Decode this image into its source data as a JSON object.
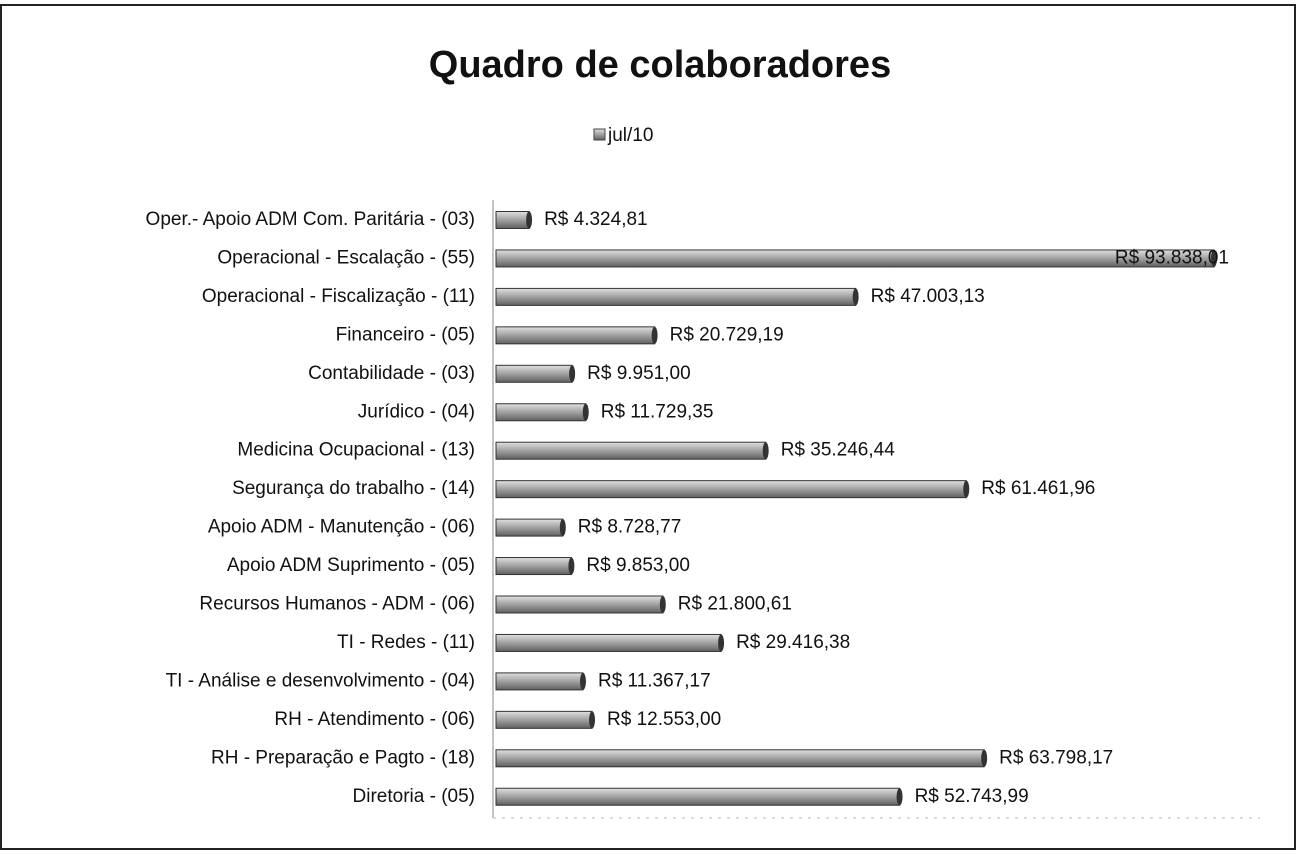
{
  "chart_data": {
    "type": "bar",
    "orientation": "horizontal",
    "title": "Quadro de colaboradores",
    "categories": [
      "Oper.- Apoio ADM Com. Paritária - (03)",
      "Operacional - Escalação - (55)",
      "Operacional - Fiscalização - (11)",
      "Financeiro - (05)",
      "Contabilidade - (03)",
      "Jurídico - (04)",
      "Medicina Ocupacional - (13)",
      "Segurança do trabalho - (14)",
      "Apoio ADM - Manutenção - (06)",
      "Apoio ADM Suprimento - (05)",
      "Recursos Humanos - ADM - (06)",
      "TI - Redes - (11)",
      "TI - Análise e desenvolvimento - (04)",
      "RH - Atendimento - (06)",
      "RH - Preparação e Pagto - (18)",
      "Diretoria -  (05)"
    ],
    "series": [
      {
        "name": "jul/10",
        "color": "#a8a8a8",
        "values": [
          4324.81,
          93838.01,
          47003.13,
          20729.19,
          9951.0,
          11729.35,
          35246.44,
          61461.96,
          8728.77,
          9853.0,
          21800.61,
          29416.38,
          11367.17,
          12553.0,
          63798.17,
          52743.99
        ],
        "value_labels": [
          "R$ 4.324,81",
          "R$ 93.838,01",
          "R$ 47.003,13",
          "R$ 20.729,19",
          "R$ 9.951,00",
          "R$ 11.729,35",
          "R$ 35.246,44",
          "R$ 61.461,96",
          "R$ 8.728,77",
          "R$ 9.853,00",
          "R$ 21.800,61",
          "R$ 29.416,38",
          "R$ 11.367,17",
          "R$ 12.553,00",
          "R$ 63.798,17",
          "R$ 52.743,99"
        ]
      }
    ],
    "legend": "top"
  }
}
